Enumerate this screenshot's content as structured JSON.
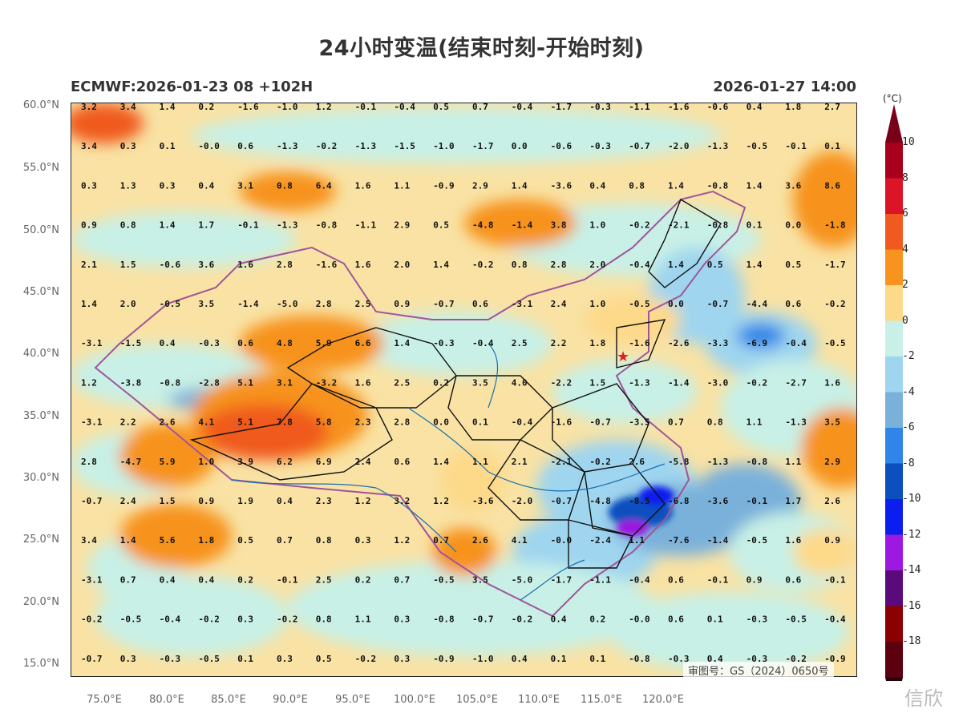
{
  "title": "24小时变温(结束时刻-开始时刻)",
  "model_run": "ECMWF:2026-01-23 08 +102H",
  "valid_time": "2026-01-27 14:00",
  "unit": "(°C)",
  "approval_number": "审图号：GS（2024）0650号",
  "watermark": "信欣",
  "lat_ticks": [
    "60.0°N",
    "55.0°N",
    "50.0°N",
    "45.0°N",
    "40.0°N",
    "35.0°N",
    "30.0°N",
    "25.0°N",
    "20.0°N",
    "15.0°N"
  ],
  "lon_ticks": [
    "75.0°E",
    "80.0°E",
    "85.0°E",
    "90.0°E",
    "95.0°E",
    "100.0°E",
    "105.0°E",
    "110.0°E",
    "115.0°E",
    "120.0°E"
  ],
  "colorbar": {
    "labels": [
      "10",
      "8",
      "6",
      "4",
      "2",
      "0",
      "-2",
      "-4",
      "-6",
      "-8",
      "-10",
      "-12",
      "-14",
      "-16",
      "-18"
    ],
    "colors": [
      "#a8001c",
      "#dc1428",
      "#f05a1e",
      "#f7931e",
      "#fdd98a",
      "#c8f0e6",
      "#9fd5ef",
      "#7ab1da",
      "#2f86e8",
      "#0c4fbf",
      "#0a1ef0",
      "#9d18e0",
      "#5a0a7a",
      "#8b0000",
      "#5c0010"
    ]
  },
  "grid_values": [
    [
      "3.2",
      "3.4",
      "1.4",
      "0.2",
      "-1.6",
      "-1.0",
      "1.2",
      "-0.1",
      "-0.4",
      "0.5",
      "0.7",
      "-0.4",
      "-1.7",
      "-0.3",
      "-1.1",
      "-1.6",
      "-0.6",
      "0.4",
      "1.8",
      "2.7"
    ],
    [
      "3.4",
      "0.3",
      "0.1",
      "-0.0",
      "0.6",
      "-1.3",
      "-0.2",
      "-1.3",
      "-1.5",
      "-1.0",
      "-1.7",
      "0.0",
      "-0.6",
      "-0.3",
      "-0.7",
      "-2.0",
      "-1.3",
      "-0.5",
      "-0.1",
      "0.1"
    ],
    [
      "0.3",
      "1.3",
      "0.3",
      "0.4",
      "3.1",
      "0.8",
      "6.4",
      "1.6",
      "1.1",
      "-0.9",
      "2.9",
      "1.4",
      "-3.6",
      "0.4",
      "0.8",
      "1.4",
      "-0.8",
      "1.4",
      "3.6",
      "8.6"
    ],
    [
      "0.9",
      "0.8",
      "1.4",
      "1.7",
      "-0.1",
      "-1.3",
      "-0.8",
      "-1.1",
      "2.9",
      "0.5",
      "-4.8",
      "-1.4",
      "3.8",
      "1.0",
      "-0.2",
      "-2.1",
      "-0.8",
      "0.1",
      "0.0",
      "-1.8"
    ],
    [
      "2.1",
      "1.5",
      "-0.6",
      "3.6",
      "1.6",
      "2.8",
      "-1.6",
      "1.6",
      "2.0",
      "1.4",
      "-0.2",
      "0.8",
      "2.8",
      "2.0",
      "-0.4",
      "1.4",
      "0.5",
      "1.4",
      "0.5",
      "-1.7"
    ],
    [
      "1.4",
      "2.0",
      "-0.5",
      "3.5",
      "-1.4",
      "-5.0",
      "2.8",
      "2.5",
      "0.9",
      "-0.7",
      "0.6",
      "-3.1",
      "2.4",
      "1.0",
      "-0.5",
      "0.0",
      "-0.7",
      "-4.4",
      "0.6",
      "-0.2"
    ],
    [
      "-3.1",
      "-1.5",
      "0.4",
      "-0.3",
      "0.6",
      "4.8",
      "5.9",
      "6.6",
      "1.4",
      "-0.3",
      "-0.4",
      "2.5",
      "2.2",
      "1.8",
      "-1.6",
      "-2.6",
      "-3.3",
      "-6.9",
      "-0.4",
      "-0.5"
    ],
    [
      "1.2",
      "-3.8",
      "-0.8",
      "-2.8",
      "5.1",
      "3.1",
      "-3.2",
      "1.6",
      "2.5",
      "0.2",
      "3.5",
      "4.0",
      "-2.2",
      "1.5",
      "-1.3",
      "-1.4",
      "-3.0",
      "-0.2",
      "-2.7",
      "1.6"
    ],
    [
      "-3.1",
      "2.2",
      "2.6",
      "4.1",
      "5.1",
      "7.8",
      "5.8",
      "2.3",
      "2.8",
      "0.0",
      "0.1",
      "-0.4",
      "-1.6",
      "-0.7",
      "-3.5",
      "0.7",
      "0.8",
      "1.1",
      "-1.3",
      "3.5"
    ],
    [
      "2.8",
      "-4.7",
      "5.9",
      "1.0",
      "3.9",
      "6.2",
      "6.9",
      "2.4",
      "0.6",
      "1.4",
      "1.1",
      "2.1",
      "-2.1",
      "-0.2",
      "2.6",
      "-5.8",
      "-1.3",
      "-0.8",
      "1.1",
      "2.9"
    ],
    [
      "-0.7",
      "2.4",
      "1.5",
      "0.9",
      "1.9",
      "0.4",
      "2.3",
      "1.2",
      "3.2",
      "1.2",
      "-3.6",
      "-2.0",
      "-0.7",
      "-4.8",
      "-8.5",
      "-6.8",
      "-3.6",
      "-0.1",
      "1.7",
      "2.6"
    ],
    [
      "3.4",
      "1.4",
      "5.6",
      "1.8",
      "0.5",
      "0.7",
      "0.8",
      "0.3",
      "1.2",
      "0.7",
      "2.6",
      "4.1",
      "-0.0",
      "-2.4",
      "1.1",
      "-7.6",
      "-1.4",
      "-0.5",
      "1.6",
      "0.9"
    ],
    [
      "-3.1",
      "0.7",
      "0.4",
      "0.4",
      "0.2",
      "-0.1",
      "2.5",
      "0.2",
      "0.7",
      "-0.5",
      "3.5",
      "-5.0",
      "-1.7",
      "-1.1",
      "-0.4",
      "0.6",
      "-0.1",
      "0.9",
      "0.6",
      "-0.1"
    ],
    [
      "-0.2",
      "-0.5",
      "-0.4",
      "-0.2",
      "0.3",
      "-0.2",
      "0.8",
      "1.1",
      "0.3",
      "-0.8",
      "-0.7",
      "-0.2",
      "0.4",
      "0.2",
      "-0.0",
      "0.6",
      "0.1",
      "-0.3",
      "-0.5",
      "-0.4"
    ],
    [
      "-0.7",
      "0.3",
      "-0.3",
      "-0.5",
      "0.1",
      "0.3",
      "0.5",
      "-0.2",
      "0.3",
      "-0.9",
      "-1.0",
      "0.4",
      "0.1",
      "0.1",
      "-0.8",
      "-0.3",
      "0.4",
      "-0.3",
      "-0.2",
      "-0.9"
    ]
  ]
}
